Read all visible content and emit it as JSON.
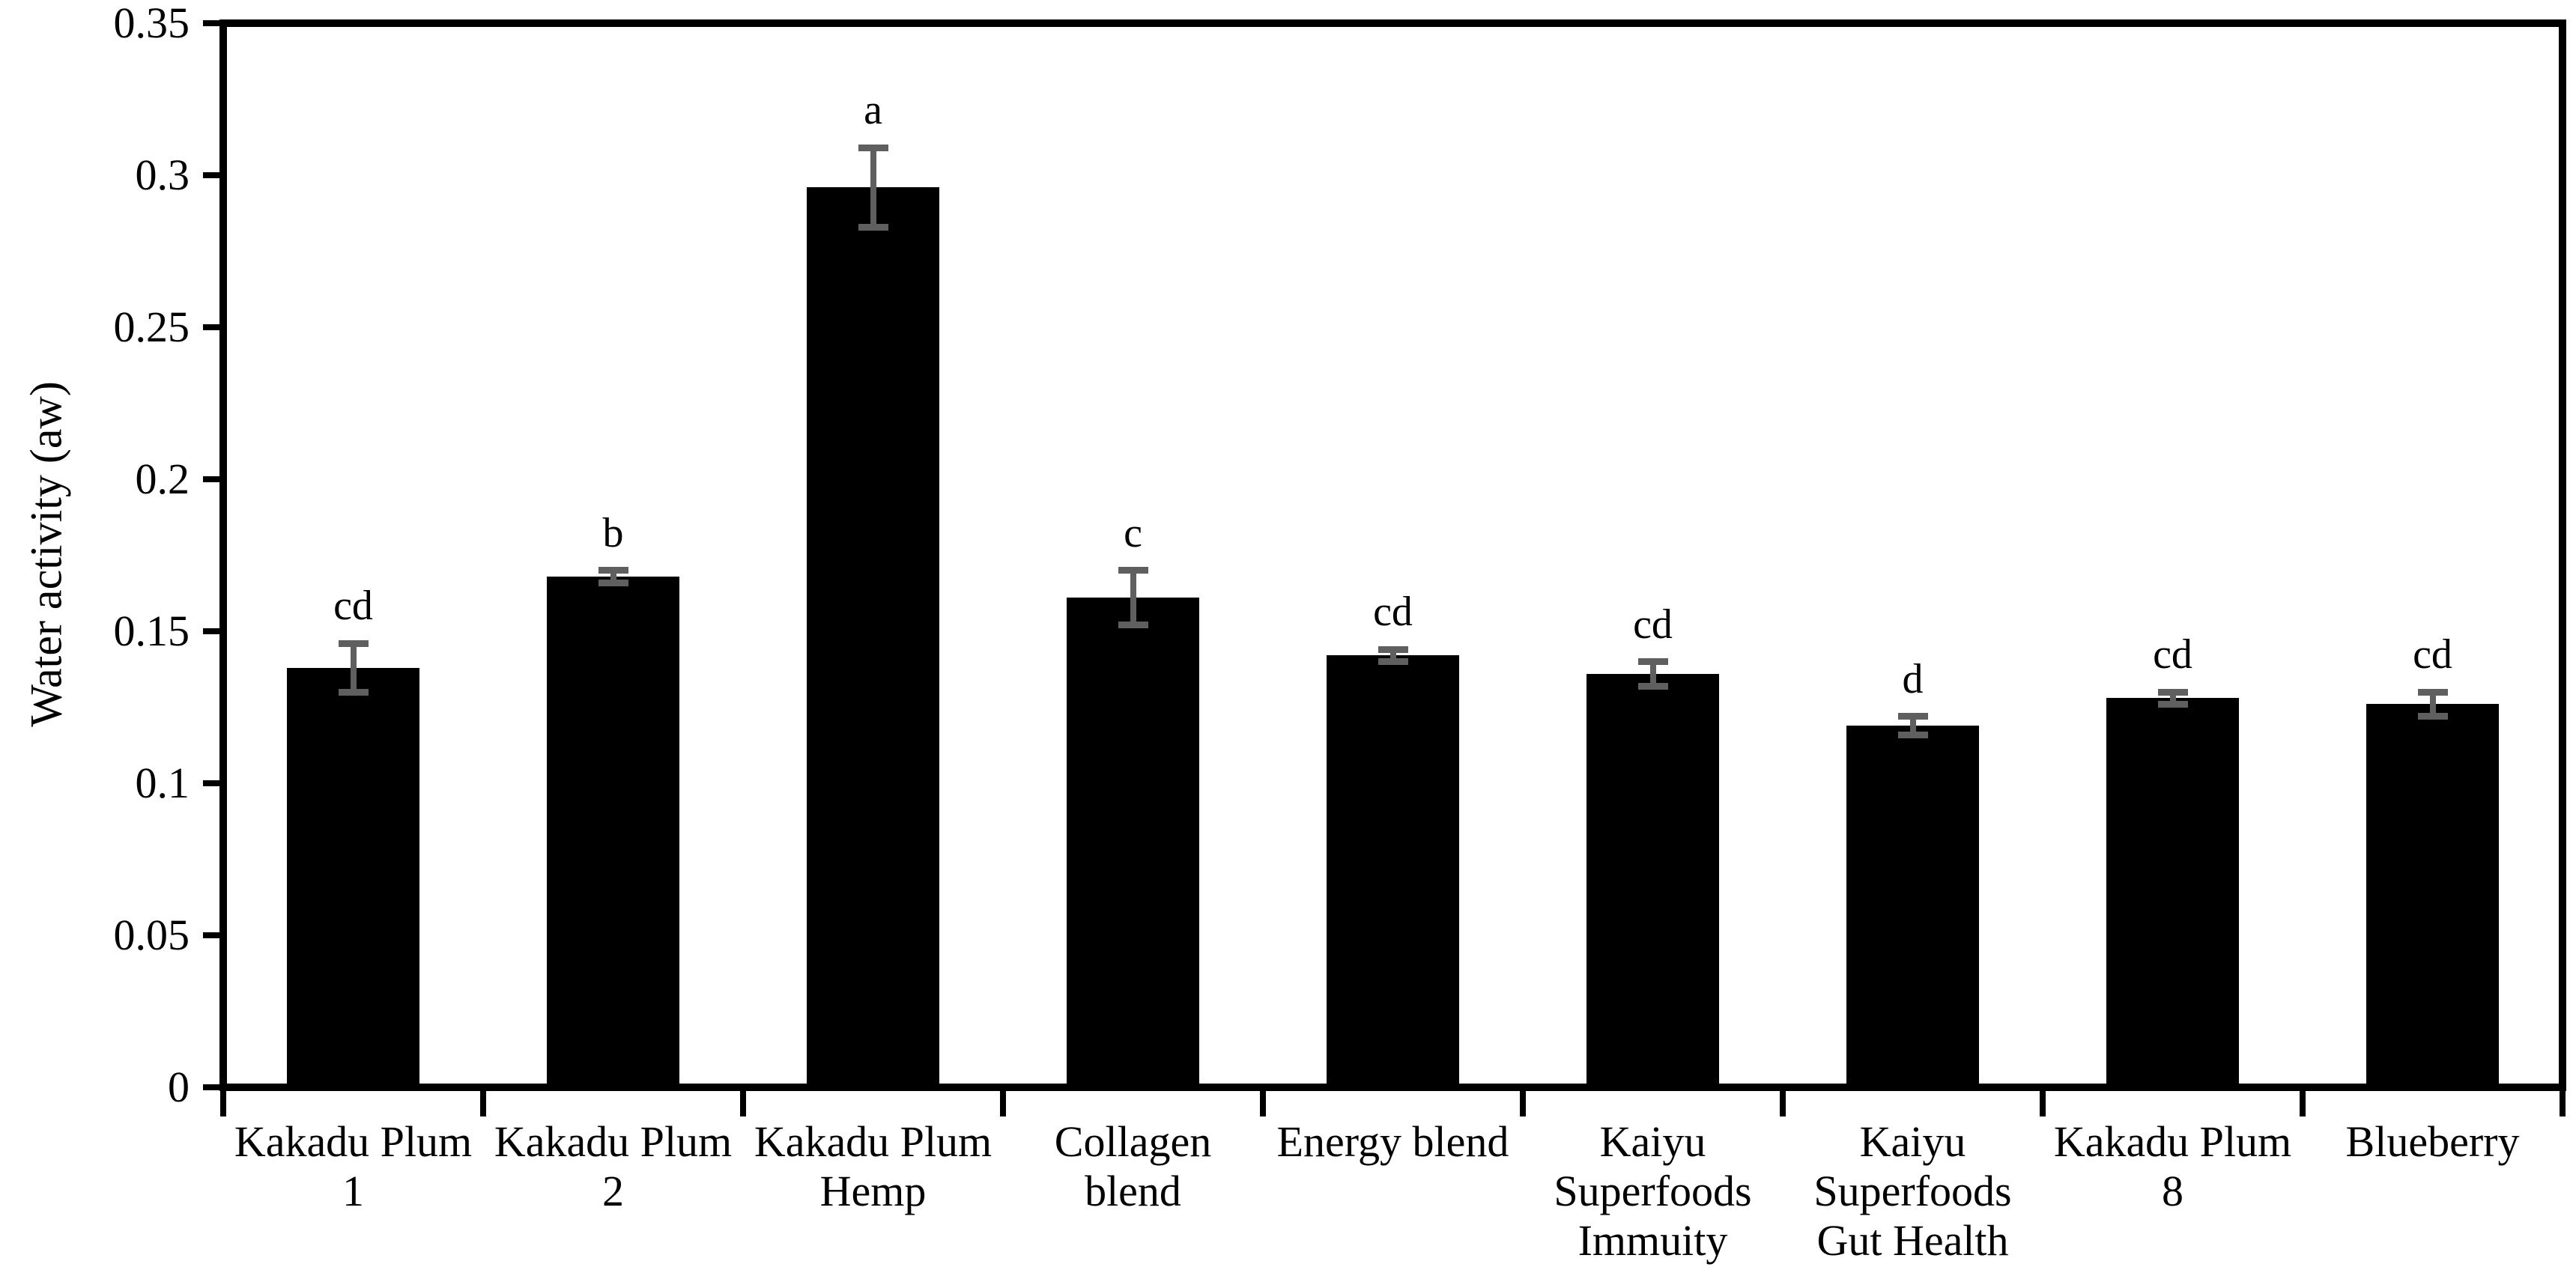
{
  "figure": {
    "background": "#ffffff",
    "text_color": "#000000"
  },
  "chart_data": {
    "type": "bar",
    "title": "",
    "xlabel": "",
    "ylabel": "Water activity (aw)",
    "ylim": [
      0,
      0.35
    ],
    "yticks": [
      0,
      0.05,
      0.1,
      0.15,
      0.2,
      0.25,
      0.3,
      0.35
    ],
    "ytick_labels": [
      "0",
      "0.05",
      "0.1",
      "0.15",
      "0.2",
      "0.25",
      "0.3",
      "0.35"
    ],
    "grid": false,
    "legend": "none",
    "bar_color": "#000000",
    "error_bar_color": "#5f5f5f",
    "categories": [
      "Kakadu Plum 1",
      "Kakadu Plum 2",
      "Kakadu Plum Hemp",
      "Collagen blend",
      "Energy blend",
      "Kaiyu Superfoods Immuity",
      "Kaiyu Superfoods Gut Health",
      "Kakadu Plum 8",
      "Blueberry"
    ],
    "category_label_lines": [
      [
        "Kakadu Plum",
        "1"
      ],
      [
        "Kakadu Plum",
        "2"
      ],
      [
        "Kakadu Plum",
        "Hemp"
      ],
      [
        "Collagen",
        "blend"
      ],
      [
        "Energy blend"
      ],
      [
        "Kaiyu",
        "Superfoods",
        "Immuity"
      ],
      [
        "Kaiyu",
        "Superfoods",
        "Gut Health"
      ],
      [
        "Kakadu Plum",
        "8"
      ],
      [
        "Blueberry"
      ]
    ],
    "values": [
      0.138,
      0.168,
      0.296,
      0.161,
      0.142,
      0.136,
      0.119,
      0.128,
      0.126
    ],
    "error_bars": [
      0.008,
      0.002,
      0.013,
      0.009,
      0.002,
      0.004,
      0.003,
      0.002,
      0.004
    ],
    "sig_letters": [
      "cd",
      "b",
      "a",
      "c",
      "cd",
      "cd",
      "d",
      "cd",
      "cd"
    ]
  }
}
